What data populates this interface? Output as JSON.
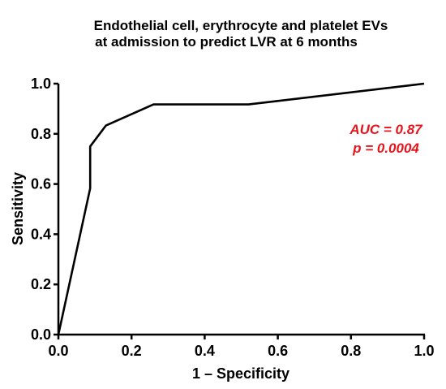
{
  "chart_data": {
    "type": "line",
    "title": [
      "Endothelial cell, erythrocyte and platelet EVs",
      "at admission to predict LVR at 6 months"
    ],
    "xlabel": "1 – Specificity",
    "ylabel": "Sensitivity",
    "xlim": [
      0,
      1
    ],
    "ylim": [
      0,
      1
    ],
    "x_ticks": [
      "0.0",
      "0.2",
      "0.4",
      "0.6",
      "0.8",
      "1.0"
    ],
    "y_ticks": [
      "0.0",
      "0.2",
      "0.4",
      "0.6",
      "0.8",
      "1.0"
    ],
    "grid": false,
    "annotations": [
      "AUC = 0.87",
      "p = 0.0004"
    ],
    "annotation_color": "#e8141c",
    "line_color": "#000000",
    "series": [
      {
        "x": [
          0.0,
          0.087,
          0.087,
          0.13,
          0.26,
          0.52,
          1.0
        ],
        "y": [
          0.0,
          0.583,
          0.75,
          0.833,
          0.917,
          0.917,
          1.0
        ]
      }
    ]
  }
}
